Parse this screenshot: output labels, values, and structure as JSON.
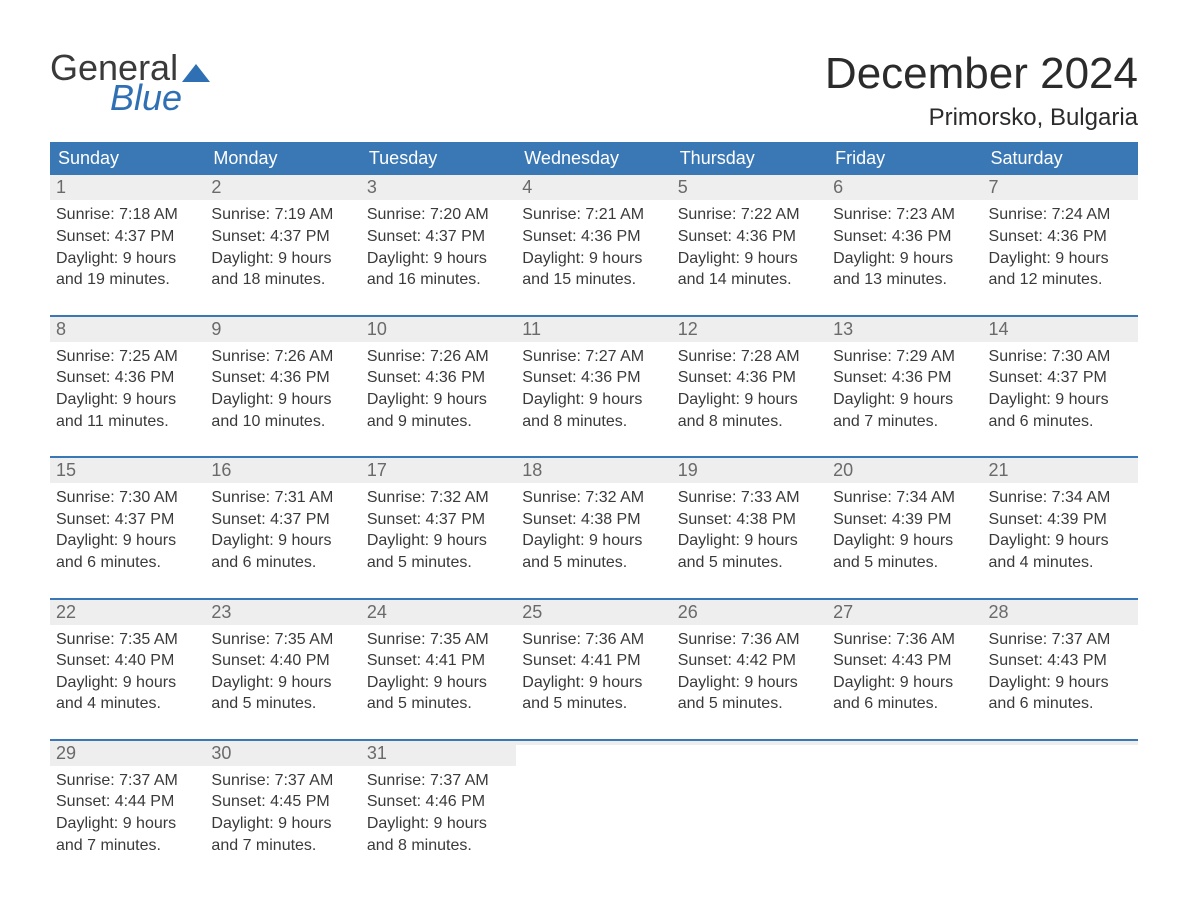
{
  "colors": {
    "header_bg": "#3a78b5",
    "header_text": "#ffffff",
    "week_border": "#3a78b5",
    "daynum_bg": "#eeeeee",
    "daynum_text": "#6a6a6a",
    "body_text": "#3a3a3a",
    "logo_accent": "#2f6fb3",
    "page_bg": "#ffffff"
  },
  "typography": {
    "title_fontsize": 44,
    "location_fontsize": 24,
    "dayhead_fontsize": 18,
    "daynum_fontsize": 18,
    "info_fontsize": 16,
    "font_family": "Arial"
  },
  "logo": {
    "line1": "General",
    "line2": "Blue"
  },
  "title": "December 2024",
  "location": "Primorsko, Bulgaria",
  "day_headers": [
    "Sunday",
    "Monday",
    "Tuesday",
    "Wednesday",
    "Thursday",
    "Friday",
    "Saturday"
  ],
  "weeks": [
    [
      {
        "n": "1",
        "sunrise": "Sunrise: 7:18 AM",
        "sunset": "Sunset: 4:37 PM",
        "d1": "Daylight: 9 hours",
        "d2": "and 19 minutes."
      },
      {
        "n": "2",
        "sunrise": "Sunrise: 7:19 AM",
        "sunset": "Sunset: 4:37 PM",
        "d1": "Daylight: 9 hours",
        "d2": "and 18 minutes."
      },
      {
        "n": "3",
        "sunrise": "Sunrise: 7:20 AM",
        "sunset": "Sunset: 4:37 PM",
        "d1": "Daylight: 9 hours",
        "d2": "and 16 minutes."
      },
      {
        "n": "4",
        "sunrise": "Sunrise: 7:21 AM",
        "sunset": "Sunset: 4:36 PM",
        "d1": "Daylight: 9 hours",
        "d2": "and 15 minutes."
      },
      {
        "n": "5",
        "sunrise": "Sunrise: 7:22 AM",
        "sunset": "Sunset: 4:36 PM",
        "d1": "Daylight: 9 hours",
        "d2": "and 14 minutes."
      },
      {
        "n": "6",
        "sunrise": "Sunrise: 7:23 AM",
        "sunset": "Sunset: 4:36 PM",
        "d1": "Daylight: 9 hours",
        "d2": "and 13 minutes."
      },
      {
        "n": "7",
        "sunrise": "Sunrise: 7:24 AM",
        "sunset": "Sunset: 4:36 PM",
        "d1": "Daylight: 9 hours",
        "d2": "and 12 minutes."
      }
    ],
    [
      {
        "n": "8",
        "sunrise": "Sunrise: 7:25 AM",
        "sunset": "Sunset: 4:36 PM",
        "d1": "Daylight: 9 hours",
        "d2": "and 11 minutes."
      },
      {
        "n": "9",
        "sunrise": "Sunrise: 7:26 AM",
        "sunset": "Sunset: 4:36 PM",
        "d1": "Daylight: 9 hours",
        "d2": "and 10 minutes."
      },
      {
        "n": "10",
        "sunrise": "Sunrise: 7:26 AM",
        "sunset": "Sunset: 4:36 PM",
        "d1": "Daylight: 9 hours",
        "d2": "and 9 minutes."
      },
      {
        "n": "11",
        "sunrise": "Sunrise: 7:27 AM",
        "sunset": "Sunset: 4:36 PM",
        "d1": "Daylight: 9 hours",
        "d2": "and 8 minutes."
      },
      {
        "n": "12",
        "sunrise": "Sunrise: 7:28 AM",
        "sunset": "Sunset: 4:36 PM",
        "d1": "Daylight: 9 hours",
        "d2": "and 8 minutes."
      },
      {
        "n": "13",
        "sunrise": "Sunrise: 7:29 AM",
        "sunset": "Sunset: 4:36 PM",
        "d1": "Daylight: 9 hours",
        "d2": "and 7 minutes."
      },
      {
        "n": "14",
        "sunrise": "Sunrise: 7:30 AM",
        "sunset": "Sunset: 4:37 PM",
        "d1": "Daylight: 9 hours",
        "d2": "and 6 minutes."
      }
    ],
    [
      {
        "n": "15",
        "sunrise": "Sunrise: 7:30 AM",
        "sunset": "Sunset: 4:37 PM",
        "d1": "Daylight: 9 hours",
        "d2": "and 6 minutes."
      },
      {
        "n": "16",
        "sunrise": "Sunrise: 7:31 AM",
        "sunset": "Sunset: 4:37 PM",
        "d1": "Daylight: 9 hours",
        "d2": "and 6 minutes."
      },
      {
        "n": "17",
        "sunrise": "Sunrise: 7:32 AM",
        "sunset": "Sunset: 4:37 PM",
        "d1": "Daylight: 9 hours",
        "d2": "and 5 minutes."
      },
      {
        "n": "18",
        "sunrise": "Sunrise: 7:32 AM",
        "sunset": "Sunset: 4:38 PM",
        "d1": "Daylight: 9 hours",
        "d2": "and 5 minutes."
      },
      {
        "n": "19",
        "sunrise": "Sunrise: 7:33 AM",
        "sunset": "Sunset: 4:38 PM",
        "d1": "Daylight: 9 hours",
        "d2": "and 5 minutes."
      },
      {
        "n": "20",
        "sunrise": "Sunrise: 7:34 AM",
        "sunset": "Sunset: 4:39 PM",
        "d1": "Daylight: 9 hours",
        "d2": "and 5 minutes."
      },
      {
        "n": "21",
        "sunrise": "Sunrise: 7:34 AM",
        "sunset": "Sunset: 4:39 PM",
        "d1": "Daylight: 9 hours",
        "d2": "and 4 minutes."
      }
    ],
    [
      {
        "n": "22",
        "sunrise": "Sunrise: 7:35 AM",
        "sunset": "Sunset: 4:40 PM",
        "d1": "Daylight: 9 hours",
        "d2": "and 4 minutes."
      },
      {
        "n": "23",
        "sunrise": "Sunrise: 7:35 AM",
        "sunset": "Sunset: 4:40 PM",
        "d1": "Daylight: 9 hours",
        "d2": "and 5 minutes."
      },
      {
        "n": "24",
        "sunrise": "Sunrise: 7:35 AM",
        "sunset": "Sunset: 4:41 PM",
        "d1": "Daylight: 9 hours",
        "d2": "and 5 minutes."
      },
      {
        "n": "25",
        "sunrise": "Sunrise: 7:36 AM",
        "sunset": "Sunset: 4:41 PM",
        "d1": "Daylight: 9 hours",
        "d2": "and 5 minutes."
      },
      {
        "n": "26",
        "sunrise": "Sunrise: 7:36 AM",
        "sunset": "Sunset: 4:42 PM",
        "d1": "Daylight: 9 hours",
        "d2": "and 5 minutes."
      },
      {
        "n": "27",
        "sunrise": "Sunrise: 7:36 AM",
        "sunset": "Sunset: 4:43 PM",
        "d1": "Daylight: 9 hours",
        "d2": "and 6 minutes."
      },
      {
        "n": "28",
        "sunrise": "Sunrise: 7:37 AM",
        "sunset": "Sunset: 4:43 PM",
        "d1": "Daylight: 9 hours",
        "d2": "and 6 minutes."
      }
    ],
    [
      {
        "n": "29",
        "sunrise": "Sunrise: 7:37 AM",
        "sunset": "Sunset: 4:44 PM",
        "d1": "Daylight: 9 hours",
        "d2": "and 7 minutes."
      },
      {
        "n": "30",
        "sunrise": "Sunrise: 7:37 AM",
        "sunset": "Sunset: 4:45 PM",
        "d1": "Daylight: 9 hours",
        "d2": "and 7 minutes."
      },
      {
        "n": "31",
        "sunrise": "Sunrise: 7:37 AM",
        "sunset": "Sunset: 4:46 PM",
        "d1": "Daylight: 9 hours",
        "d2": "and 8 minutes."
      },
      null,
      null,
      null,
      null
    ]
  ]
}
